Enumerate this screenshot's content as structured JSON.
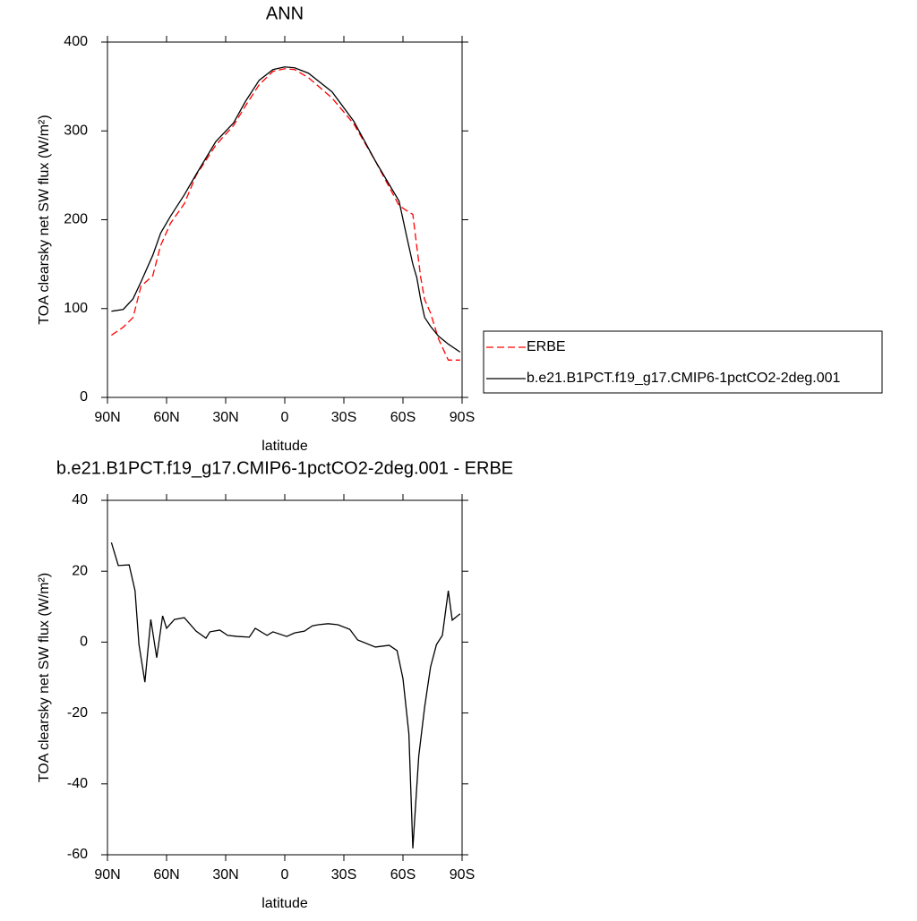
{
  "chart_data": [
    {
      "type": "line",
      "title": "ANN",
      "xlabel": "latitude",
      "ylabel": "TOA clearsky net SW flux (W/m²)",
      "x": [
        88,
        82,
        77,
        73,
        67,
        63,
        58,
        51,
        45,
        35,
        26,
        20,
        13,
        6,
        0,
        -5,
        -12,
        -24,
        -35,
        -46,
        -58,
        -62,
        -65,
        -67,
        -69,
        -71,
        -74,
        -78,
        -83,
        -89
      ],
      "xlim": [
        90,
        -90
      ],
      "xticks": [
        {
          "value": 90,
          "label": "90N"
        },
        {
          "value": 60,
          "label": "60N"
        },
        {
          "value": 30,
          "label": "30N"
        },
        0,
        {
          "value": -30,
          "label": "30S"
        },
        {
          "value": -60,
          "label": "60S"
        },
        {
          "value": -90,
          "label": "90S"
        }
      ],
      "ylim": [
        0,
        400
      ],
      "yticks": [
        0,
        100,
        200,
        300,
        400
      ],
      "legend": "right",
      "series": [
        {
          "name": "ERBE",
          "color": "#ff0000",
          "linestyle": "dashed",
          "values": [
            70,
            79,
            90,
            125,
            137,
            171,
            196,
            218,
            250,
            284,
            306,
            328,
            352,
            367,
            370,
            369,
            360,
            337,
            308,
            266,
            216,
            210,
            206,
            170,
            135,
            110,
            95,
            66,
            42,
            42
          ]
        },
        {
          "name": "b.e21.B1PCT.f19_g17.CMIP6-1pctCO2-2deg.001",
          "color": "#000000",
          "linestyle": "solid",
          "values": [
            97,
            99,
            111,
            130,
            160,
            185,
            204,
            228,
            251,
            288,
            309,
            333,
            357,
            369,
            372,
            371,
            365,
            344,
            311,
            266,
            221,
            180,
            150,
            135,
            110,
            90,
            80,
            69,
            60,
            51
          ]
        }
      ]
    },
    {
      "type": "line",
      "title": "b.e21.B1PCT.f19_g17.CMIP6-1pctCO2-2deg.001 - ERBE",
      "xlabel": "latitude",
      "ylabel": "TOA clearsky net SW flux (W/m²)",
      "x": [
        88,
        84.5,
        79,
        76,
        74,
        71,
        68,
        65,
        62,
        60,
        56,
        51,
        45,
        40,
        38,
        33,
        29,
        24,
        18,
        15,
        9,
        6,
        -1,
        -5,
        -10,
        -14,
        -17,
        -22,
        -27,
        -33,
        -37,
        -46,
        -53,
        -57,
        -60,
        -63,
        -65,
        -68,
        -71,
        -74,
        -77,
        -80,
        -83,
        -85,
        -89
      ],
      "xlim": [
        90,
        -90
      ],
      "xticks": [
        {
          "value": 90,
          "label": "90N"
        },
        {
          "value": 60,
          "label": "60N"
        },
        {
          "value": 30,
          "label": "30N"
        },
        0,
        {
          "value": -30,
          "label": "30S"
        },
        {
          "value": -60,
          "label": "60S"
        },
        {
          "value": -90,
          "label": "90S"
        }
      ],
      "ylim": [
        -60,
        40
      ],
      "yticks": [
        -60,
        -40,
        -20,
        0,
        20,
        40
      ],
      "series": [
        {
          "color": "#000000",
          "linestyle": "solid",
          "values": [
            28.1,
            21.6,
            21.8,
            14.5,
            -0.7,
            -11.3,
            6.4,
            -4.4,
            7.4,
            3.9,
            6.4,
            6.9,
            3.1,
            1.1,
            2.9,
            3.4,
            1.9,
            1.6,
            1.4,
            3.9,
            1.9,
            2.9,
            1.6,
            2.6,
            3.1,
            4.6,
            4.9,
            5.2,
            4.9,
            3.6,
            0.6,
            -1.4,
            -0.9,
            -2.4,
            -10.3,
            -25.9,
            -58.2,
            -32.2,
            -18.3,
            -7.0,
            -0.7,
            1.9,
            14.5,
            6.2,
            8
          ]
        }
      ]
    }
  ]
}
